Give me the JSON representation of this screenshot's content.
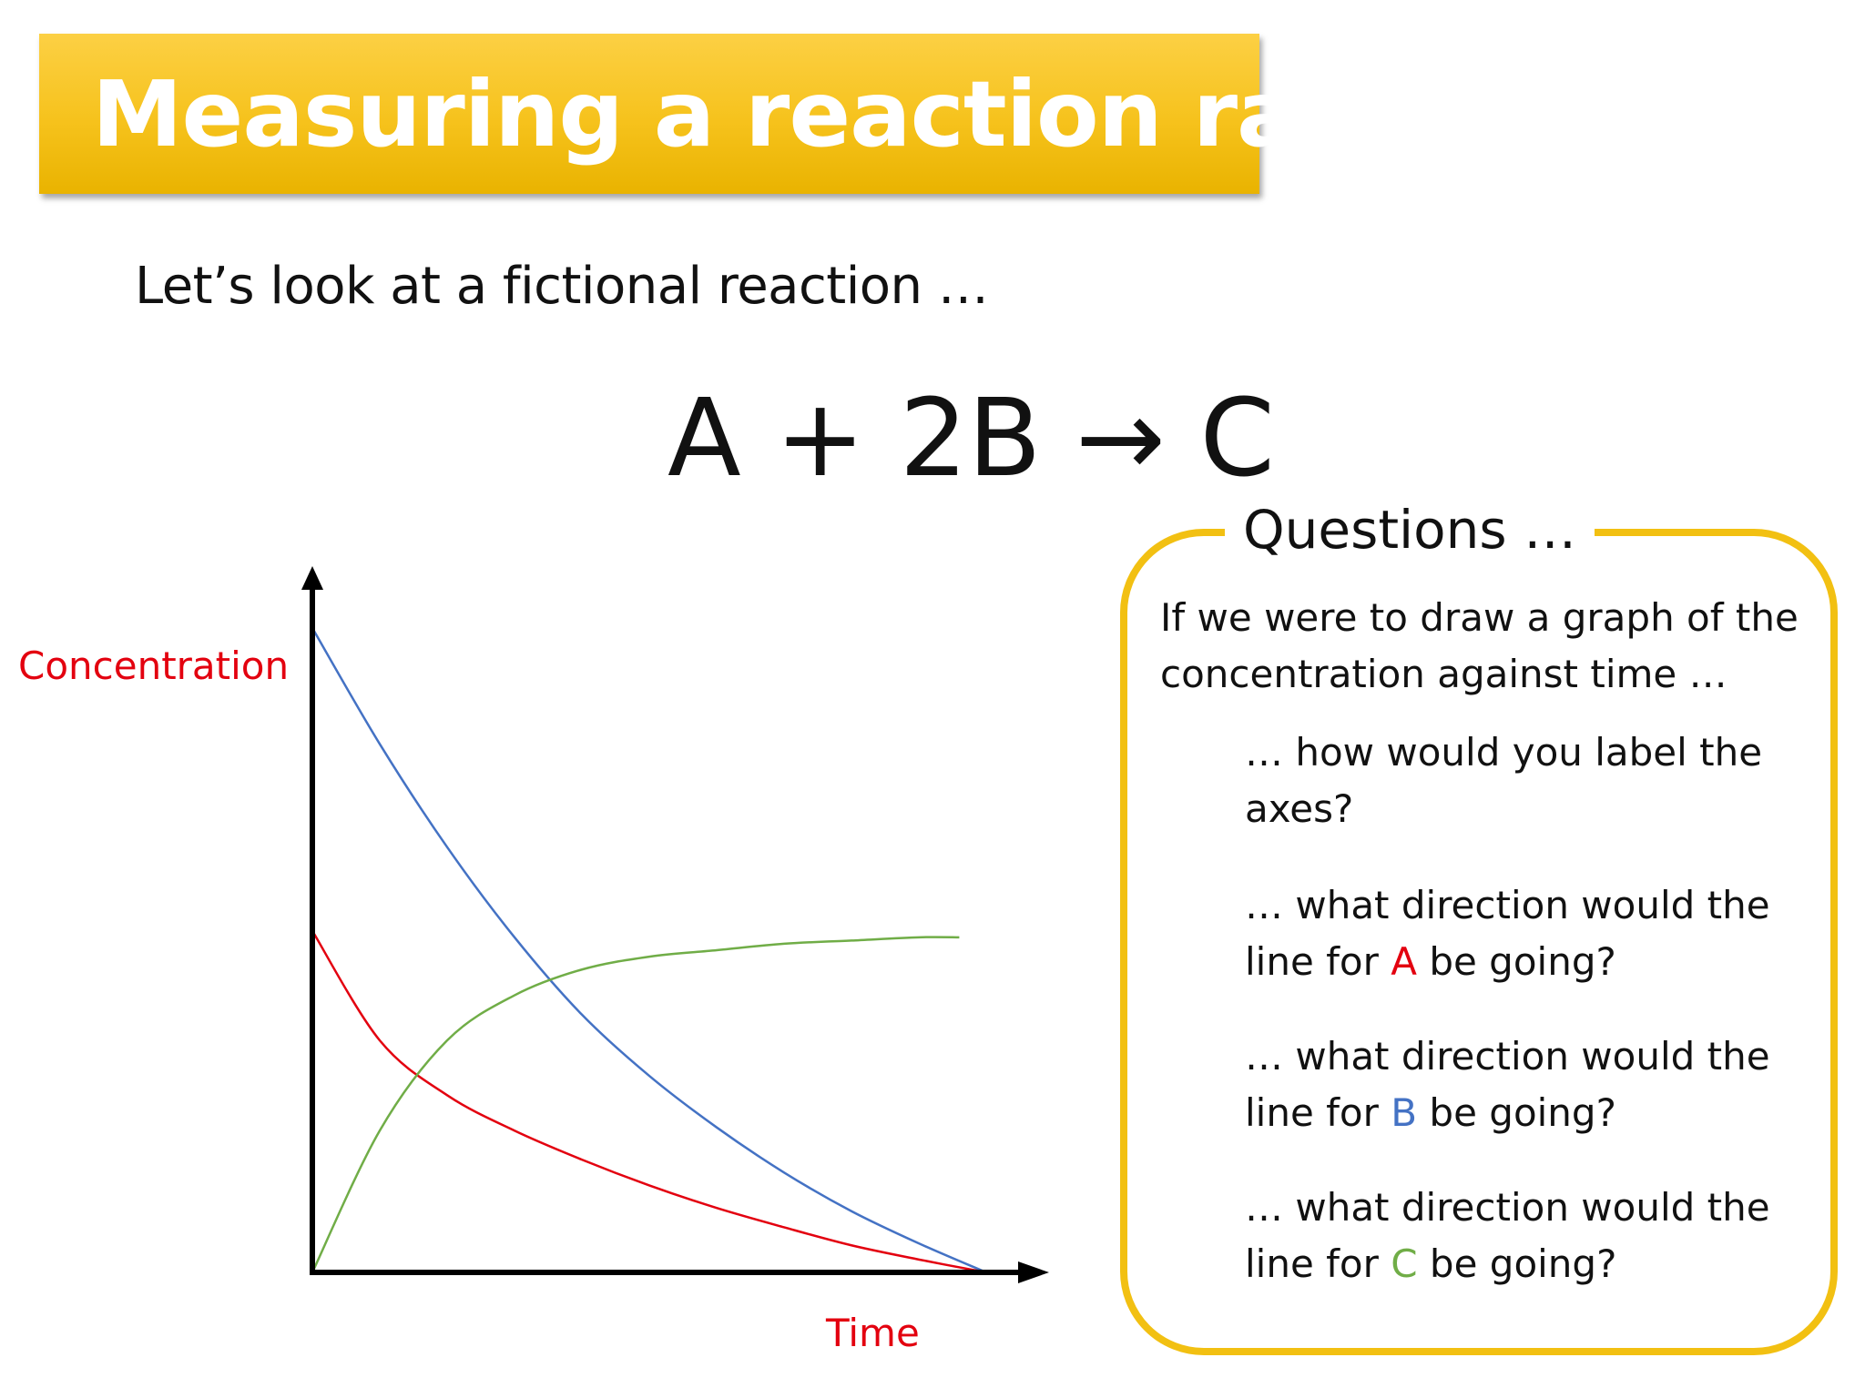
{
  "title": "Measuring a reaction rate",
  "intro": "Let’s look at a fictional reaction …",
  "equation": "A + 2B → C",
  "questions": {
    "heading": "Questions …",
    "intro": "If we were to draw a graph of the concentration against time …",
    "items": [
      {
        "text": "… how would you label the axes?"
      },
      {
        "before": "… what direction would the line for ",
        "species": "A",
        "after": " be going?"
      },
      {
        "before": "… what direction would the line for ",
        "species": "B",
        "after": " be going?"
      },
      {
        "before": "… what direction would the line for ",
        "species": "C",
        "after": " be going?"
      }
    ]
  },
  "colors": {
    "A": "#e3000f",
    "B": "#4472c4",
    "C": "#70ad47",
    "banner": "#f6c21c",
    "box": "#f2c012",
    "axis_label": "#e3000f"
  },
  "chart_data": {
    "type": "line",
    "title": "",
    "xlabel": "Time",
    "ylabel": "Concentration",
    "xlim": [
      0,
      10
    ],
    "ylim": [
      0,
      10
    ],
    "grid": false,
    "legend": "none",
    "series": [
      {
        "color": "#4472c4",
        "x": [
          0,
          1,
          2,
          3,
          4,
          5,
          6,
          7,
          8,
          9,
          10
        ],
        "y": [
          10,
          8.2,
          6.6,
          5.2,
          4.0,
          3.05,
          2.25,
          1.55,
          0.95,
          0.45,
          0
        ]
      },
      {
        "color": "#e3000f",
        "x": [
          0,
          1,
          2,
          3,
          4,
          5,
          6,
          7,
          8,
          9,
          10
        ],
        "y": [
          5.3,
          3.6,
          2.75,
          2.2,
          1.75,
          1.35,
          1.0,
          0.7,
          0.42,
          0.2,
          0
        ]
      },
      {
        "color": "#70ad47",
        "x": [
          0,
          1,
          2,
          3,
          4,
          5,
          6,
          7,
          8,
          9,
          9.6
        ],
        "y": [
          0,
          2.2,
          3.6,
          4.3,
          4.7,
          4.9,
          5.0,
          5.1,
          5.15,
          5.2,
          5.2
        ]
      }
    ]
  }
}
